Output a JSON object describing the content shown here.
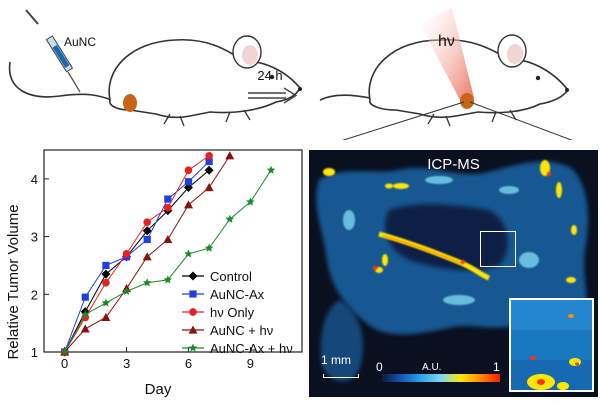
{
  "scene": {
    "injection_label": "AuNC",
    "time_label": "24 h",
    "light_label": "hν"
  },
  "chart_data": {
    "type": "line",
    "xlabel": "Day",
    "ylabel": "Relative Tumor Volume",
    "xlim": [
      -1,
      11.5
    ],
    "ylim": [
      1,
      4.5
    ],
    "xticks": [
      0,
      3,
      6,
      9
    ],
    "yticks": [
      1,
      2,
      3,
      4
    ],
    "legend_position": "bottom-right",
    "series": [
      {
        "name": "Control",
        "color": "#000000",
        "marker": "diamond",
        "x": [
          0,
          1,
          2,
          3,
          4,
          5,
          6,
          7
        ],
        "y": [
          1.0,
          1.7,
          2.35,
          2.65,
          3.1,
          3.45,
          3.85,
          4.15
        ]
      },
      {
        "name": "AuNC-Ax",
        "color": "#1f3fe0",
        "marker": "square",
        "x": [
          0,
          1,
          2,
          3,
          4,
          5,
          6,
          7
        ],
        "y": [
          1.0,
          1.95,
          2.5,
          2.65,
          2.95,
          3.65,
          3.95,
          4.3
        ]
      },
      {
        "name": "hν Only",
        "color": "#e82020",
        "marker": "circle",
        "x": [
          0,
          1,
          2,
          3,
          4,
          5,
          6,
          7
        ],
        "y": [
          1.0,
          1.6,
          2.2,
          2.7,
          3.25,
          3.5,
          4.15,
          4.4
        ]
      },
      {
        "name": "AuNC + hν",
        "color": "#8b1010",
        "marker": "triangle",
        "x": [
          0,
          1,
          2,
          3,
          4,
          5,
          6,
          7,
          8
        ],
        "y": [
          1.0,
          1.4,
          1.6,
          2.1,
          2.65,
          2.95,
          3.55,
          3.85,
          4.4
        ]
      },
      {
        "name": "AuNC-Ax + hν",
        "color": "#1a8a2a",
        "marker": "star",
        "x": [
          0,
          1,
          2,
          3,
          4,
          5,
          6,
          7,
          8,
          9,
          10
        ],
        "y": [
          1.0,
          1.65,
          1.85,
          2.05,
          2.2,
          2.25,
          2.7,
          2.8,
          3.3,
          3.6,
          4.15
        ]
      }
    ]
  },
  "icp": {
    "title": "ICP-MS",
    "scalebar": "1 mm",
    "cbar_min": "0",
    "cbar_unit": "A.U.",
    "cbar_max": "1"
  },
  "colors": {
    "panel_bg": "#0a1020",
    "tissue": "#1d6fb8",
    "hot": "#ffe600",
    "tumor": "#c86414",
    "beam": "#f08a80"
  }
}
